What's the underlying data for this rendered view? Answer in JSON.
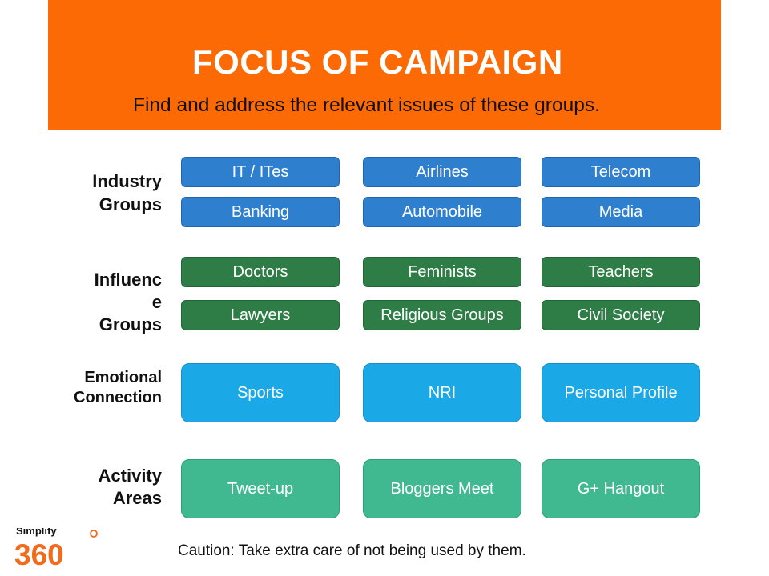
{
  "header": {
    "title": "FOCUS OF CAMPAIGN",
    "subtitle": "Find and address the relevant issues of these groups."
  },
  "rows": [
    {
      "label": "Industry\nGroups",
      "items": [
        "IT / ITes",
        "Airlines",
        "Telecom",
        "Banking",
        "Automobile",
        "Media"
      ]
    },
    {
      "label": "Influenc\ne\nGroups",
      "items": [
        "Doctors",
        "Feminists",
        "Teachers",
        "Lawyers",
        "Religious Groups",
        "Civil Society"
      ]
    },
    {
      "label": "Emotional\nConnection",
      "items": [
        "Sports",
        "NRI",
        "Personal Profile"
      ]
    },
    {
      "label": "Activity\nAreas",
      "items": [
        "Tweet-up",
        "Bloggers Meet",
        "G+ Hangout"
      ]
    }
  ],
  "footer": {
    "caution": "Caution: Take extra care of not being used by them."
  },
  "logo": {
    "word": "Simplify",
    "number": "360",
    "colors": {
      "number": "#f26a1b",
      "word": "#111111"
    }
  },
  "colors": {
    "banner": "#fb6a05",
    "industry": "#2f7fcf",
    "influence": "#2e7d47",
    "emotional": "#1ba8e6",
    "activity": "#40b890"
  }
}
